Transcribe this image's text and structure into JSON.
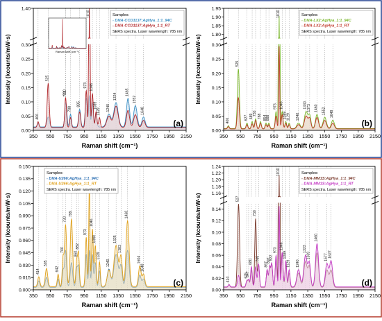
{
  "figure": {
    "frame_colors": {
      "top": "#1f3f8f",
      "bottom": "#b4382a"
    },
    "panel_bg": "#ffffff"
  },
  "chart_data": [
    {
      "type": "line",
      "panel_label": "(a)",
      "xlabel": "Raman shift (cm⁻¹)",
      "ylabel": "Intensity (kcounts/mW·s)",
      "xlim": [
        350,
        2150
      ],
      "x_ticks": [
        350,
        550,
        750,
        950,
        1150,
        1350,
        1550,
        1750,
        1950,
        2150
      ],
      "ylim": [
        0,
        1.4
      ],
      "y_ticks": [
        "0.00",
        "0.05",
        "0.10",
        "0.15",
        "0.20",
        "0.25",
        "0.30",
        "1.40"
      ],
      "axis_break": {
        "lower_max": 0.3,
        "upper_min": 1.35,
        "upper_max": 1.4
      },
      "legend": {
        "title": "Samples:",
        "entries": [
          "- DNA-CCD1137:AgHya_1:1_94C",
          "- DNA-CCD1137:AgHya_1:1_RT"
        ],
        "note": "SERS spectra. Laser wavelength: 785 nm",
        "position": "top-right"
      },
      "peak_labels": [
        "406",
        "525",
        "730",
        "733",
        "788",
        "895",
        "973",
        "1010",
        "1046",
        "1089",
        "1129",
        "1240",
        "1324",
        "1465",
        "1552",
        "1648"
      ],
      "inset": {
        "xlabel": "Raman shift (cm⁻¹)"
      },
      "series": [
        {
          "name": "DNA-CCD1137:AgHya_1:1_94C",
          "color": "#3a8fc4",
          "fill": "#c9dff0",
          "peaks": [
            [
              406,
              0.012,
              10
            ],
            [
              525,
              0.035,
              14
            ],
            [
              733,
              0.085,
              12
            ],
            [
              788,
              0.045,
              10
            ],
            [
              895,
              0.062,
              12
            ],
            [
              973,
              0.1,
              12
            ],
            [
              1010,
              0.11,
              8
            ],
            [
              1046,
              0.085,
              10
            ],
            [
              1089,
              0.05,
              10
            ],
            [
              1240,
              0.045,
              25
            ],
            [
              1324,
              0.085,
              25
            ],
            [
              1465,
              0.1,
              18
            ],
            [
              1552,
              0.075,
              20
            ],
            [
              1648,
              0.035,
              18
            ]
          ],
          "baseline": 0.012
        },
        {
          "name": "DNA-CCD1137:AgHya_1:1_RT",
          "color": "#b0262a",
          "fill": "#eccaca",
          "peaks": [
            [
              406,
              0.02,
              10
            ],
            [
              525,
              0.155,
              12
            ],
            [
              730,
              0.105,
              10
            ],
            [
              788,
              0.035,
              10
            ],
            [
              895,
              0.055,
              12
            ],
            [
              973,
              0.13,
              10
            ],
            [
              1010,
              1.39,
              6
            ],
            [
              1046,
              0.12,
              10
            ],
            [
              1089,
              0.055,
              10
            ],
            [
              1129,
              0.035,
              10
            ],
            [
              1240,
              0.04,
              25
            ],
            [
              1324,
              0.075,
              25
            ],
            [
              1465,
              0.06,
              18
            ],
            [
              1552,
              0.045,
              20
            ],
            [
              1648,
              0.025,
              18
            ]
          ],
          "baseline": 0.01
        }
      ]
    },
    {
      "type": "line",
      "panel_label": "(b)",
      "xlabel": "Raman shift (cm⁻¹)",
      "ylabel": "Intensity (kcounts/mW·s)",
      "xlim": [
        350,
        2150
      ],
      "x_ticks": [
        350,
        550,
        750,
        950,
        1150,
        1350,
        1550,
        1750,
        1950,
        2150
      ],
      "ylim": [
        0,
        1.95
      ],
      "y_ticks": [
        "0.00",
        "0.05",
        "0.10",
        "0.15",
        "0.20",
        "0.25",
        "0.30",
        "1.80",
        "1.85",
        "1.90",
        "1.95"
      ],
      "axis_break": {
        "lower_max": 0.3,
        "upper_min": 1.78,
        "upper_max": 1.95
      },
      "legend": {
        "title": "Samples:",
        "entries": [
          "- DNA-LX2:AgHya_1:1_94C",
          "- DNA-LX2:AgHya_1:1_RT"
        ],
        "note": "SERS spectra. Laser wavelength: 785 nm",
        "position": "top-right"
      },
      "peak_labels": [
        "406",
        "525",
        "627",
        "689",
        "730",
        "788",
        "854",
        "888",
        "973",
        "1010",
        "1046",
        "1089",
        "1129",
        "1240",
        "1330",
        "1373",
        "1460",
        "1552",
        "1648"
      ],
      "series": [
        {
          "name": "DNA-LX2:AgHya_1:1_94C",
          "color": "#7cb82f",
          "fill": "#dcebc4",
          "peaks": [
            [
              406,
              0.01,
              10
            ],
            [
              525,
              0.21,
              12
            ],
            [
              627,
              0.02,
              10
            ],
            [
              689,
              0.025,
              10
            ],
            [
              730,
              0.035,
              10
            ],
            [
              788,
              0.025,
              10
            ],
            [
              854,
              0.02,
              10
            ],
            [
              888,
              0.02,
              10
            ],
            [
              973,
              0.06,
              10
            ],
            [
              1010,
              1.9,
              6
            ],
            [
              1046,
              0.06,
              10
            ],
            [
              1089,
              0.025,
              10
            ],
            [
              1129,
              0.02,
              10
            ],
            [
              1240,
              0.02,
              20
            ],
            [
              1330,
              0.06,
              20
            ],
            [
              1373,
              0.045,
              15
            ],
            [
              1460,
              0.05,
              18
            ],
            [
              1552,
              0.04,
              20
            ],
            [
              1648,
              0.03,
              18
            ]
          ],
          "baseline": 0.006
        },
        {
          "name": "DNA-LX2:AgHya_1:1_RT",
          "color": "#c0392b",
          "fill": "#f1d3cc",
          "peaks": [
            [
              406,
              0.008,
              10
            ],
            [
              525,
              0.11,
              12
            ],
            [
              627,
              0.015,
              10
            ],
            [
              689,
              0.018,
              10
            ],
            [
              730,
              0.03,
              10
            ],
            [
              788,
              0.02,
              10
            ],
            [
              854,
              0.015,
              10
            ],
            [
              888,
              0.015,
              10
            ],
            [
              973,
              0.045,
              10
            ],
            [
              1010,
              0.29,
              6
            ],
            [
              1046,
              0.05,
              10
            ],
            [
              1089,
              0.02,
              10
            ],
            [
              1129,
              0.015,
              10
            ],
            [
              1240,
              0.015,
              20
            ],
            [
              1330,
              0.045,
              20
            ],
            [
              1373,
              0.035,
              15
            ],
            [
              1460,
              0.04,
              18
            ],
            [
              1552,
              0.03,
              20
            ],
            [
              1648,
              0.02,
              18
            ]
          ],
          "baseline": 0.005
        }
      ]
    },
    {
      "type": "line",
      "panel_label": "(c)",
      "xlabel": "Raman shift (cm⁻¹)",
      "ylabel": "Intensity (kcounts/mW·s)",
      "xlim": [
        350,
        2150
      ],
      "x_ticks": [
        350,
        550,
        750,
        950,
        1150,
        1350,
        1550,
        1750,
        1950,
        2150
      ],
      "ylim": [
        0,
        0.15
      ],
      "y_ticks": [
        "0.000",
        "0.015",
        "0.030",
        "0.045",
        "0.060",
        "0.075",
        "0.090",
        "0.105",
        "0.120",
        "0.135",
        "0.150"
      ],
      "legend": {
        "title": "Samples:",
        "entries": [
          "- DNA-U266:AgHya_1:1_94C",
          "- DNA-U266:AgHya_1:1_RT"
        ],
        "note": "SERS spectra. Laser wavelength: 785 nm",
        "position": "top-left"
      },
      "peak_labels": [
        "414",
        "505",
        "642",
        "700",
        "730",
        "799",
        "860",
        "882",
        "973",
        "1010",
        "1046",
        "1080",
        "1129",
        "1240",
        "1325",
        "1383",
        "1460",
        "1604",
        "1648"
      ],
      "series": [
        {
          "name": "DNA-U266:AgHya_1:1_94C",
          "color": "#2b6fb3",
          "fill": "#c6d9ec",
          "peaks": [
            [
              414,
              0.008,
              12
            ],
            [
              505,
              0.012,
              14
            ],
            [
              642,
              0.01,
              10
            ],
            [
              700,
              0.02,
              10
            ],
            [
              730,
              0.045,
              12
            ],
            [
              799,
              0.03,
              14
            ],
            [
              860,
              0.022,
              10
            ],
            [
              882,
              0.025,
              10
            ],
            [
              973,
              0.04,
              10
            ],
            [
              1010,
              0.045,
              8
            ],
            [
              1046,
              0.04,
              10
            ],
            [
              1080,
              0.03,
              10
            ],
            [
              1129,
              0.02,
              10
            ],
            [
              1240,
              0.022,
              20
            ],
            [
              1325,
              0.04,
              25
            ],
            [
              1383,
              0.025,
              15
            ],
            [
              1460,
              0.045,
              18
            ],
            [
              1604,
              0.015,
              15
            ],
            [
              1648,
              0.01,
              15
            ]
          ],
          "baseline": 0.003
        },
        {
          "name": "DNA-U266:AgHya_1:1_RT",
          "color": "#e0a21e",
          "fill": "#f6e2b3",
          "peaks": [
            [
              414,
              0.012,
              12
            ],
            [
              505,
              0.022,
              14
            ],
            [
              642,
              0.015,
              10
            ],
            [
              700,
              0.035,
              10
            ],
            [
              730,
              0.075,
              12
            ],
            [
              799,
              0.082,
              14
            ],
            [
              860,
              0.03,
              10
            ],
            [
              882,
              0.04,
              10
            ],
            [
              973,
              0.06,
              10
            ],
            [
              1010,
              0.125,
              7
            ],
            [
              1046,
              0.07,
              10
            ],
            [
              1080,
              0.05,
              10
            ],
            [
              1129,
              0.03,
              10
            ],
            [
              1240,
              0.02,
              20
            ],
            [
              1325,
              0.05,
              25
            ],
            [
              1383,
              0.035,
              15
            ],
            [
              1460,
              0.08,
              18
            ],
            [
              1604,
              0.025,
              15
            ],
            [
              1648,
              0.015,
              15
            ]
          ],
          "baseline": 0.004
        }
      ]
    },
    {
      "type": "line",
      "panel_label": "(d)",
      "xlabel": "Raman shift (cm⁻¹)",
      "ylabel": "Intensity (kcounts/mW·s)",
      "xlim": [
        350,
        2150
      ],
      "x_ticks": [
        350,
        550,
        750,
        950,
        1150,
        1350,
        1550,
        1750,
        1950,
        2150
      ],
      "ylim": [
        0,
        1.24
      ],
      "y_ticks": [
        "0.00",
        "0.02",
        "0.04",
        "0.06",
        "0.08",
        "0.10",
        "0.12",
        "0.14",
        "1.16",
        "1.18",
        "1.20",
        "1.22",
        "1.24"
      ],
      "axis_break": {
        "lower_max": 0.15,
        "upper_min": 1.15,
        "upper_max": 1.24
      },
      "legend": {
        "title": "Samples:",
        "entries": [
          "- DNA-MM1S:AgHya_1:1_94C",
          "- DNA-MM1S:AgHya_1:1_RT"
        ],
        "note": "SERS spectra. Laser wavelength: 785 nm",
        "position": "top-right"
      },
      "peak_labels": [
        "414",
        "527",
        "625",
        "647",
        "680",
        "730",
        "765",
        "867",
        "897",
        "922",
        "973",
        "1010",
        "1046",
        "1089",
        "1129",
        "1240",
        "1323",
        "1369",
        "1460",
        "1577",
        "1627"
      ],
      "series": [
        {
          "name": "DNA-MM1S:AgHya_1:1_94C",
          "color": "#7a3b2e",
          "fill": "#e6d2cc",
          "peaks": [
            [
              414,
              0.005,
              10
            ],
            [
              527,
              0.145,
              12
            ],
            [
              625,
              0.01,
              10
            ],
            [
              647,
              0.012,
              10
            ],
            [
              680,
              0.03,
              10
            ],
            [
              730,
              0.12,
              10
            ],
            [
              765,
              0.04,
              10
            ],
            [
              867,
              0.03,
              10
            ],
            [
              897,
              0.035,
              10
            ],
            [
              922,
              0.04,
              10
            ],
            [
              973,
              0.05,
              10
            ],
            [
              1010,
              1.21,
              6
            ],
            [
              1046,
              0.06,
              10
            ],
            [
              1089,
              0.04,
              10
            ],
            [
              1129,
              0.025,
              10
            ],
            [
              1240,
              0.025,
              20
            ],
            [
              1323,
              0.045,
              20
            ],
            [
              1369,
              0.035,
              15
            ],
            [
              1460,
              0.06,
              18
            ],
            [
              1577,
              0.03,
              18
            ],
            [
              1627,
              0.03,
              18
            ]
          ],
          "baseline": 0.004
        },
        {
          "name": "DNA-MM1S:AgHya_1:1_RT",
          "color": "#c43ac4",
          "fill": "#f0d0f0",
          "peaks": [
            [
              414,
              0.004,
              10
            ],
            [
              527,
              0.02,
              12
            ],
            [
              625,
              0.01,
              10
            ],
            [
              647,
              0.012,
              10
            ],
            [
              680,
              0.035,
              10
            ],
            [
              730,
              0.035,
              10
            ],
            [
              765,
              0.04,
              10
            ],
            [
              867,
              0.03,
              10
            ],
            [
              897,
              0.035,
              10
            ],
            [
              922,
              0.04,
              10
            ],
            [
              973,
              0.055,
              10
            ],
            [
              1010,
              0.14,
              6
            ],
            [
              1046,
              0.06,
              10
            ],
            [
              1089,
              0.045,
              10
            ],
            [
              1129,
              0.03,
              10
            ],
            [
              1240,
              0.03,
              20
            ],
            [
              1323,
              0.055,
              20
            ],
            [
              1369,
              0.04,
              15
            ],
            [
              1460,
              0.075,
              18
            ],
            [
              1577,
              0.04,
              18
            ],
            [
              1627,
              0.045,
              18
            ]
          ],
          "baseline": 0.005
        }
      ]
    }
  ]
}
